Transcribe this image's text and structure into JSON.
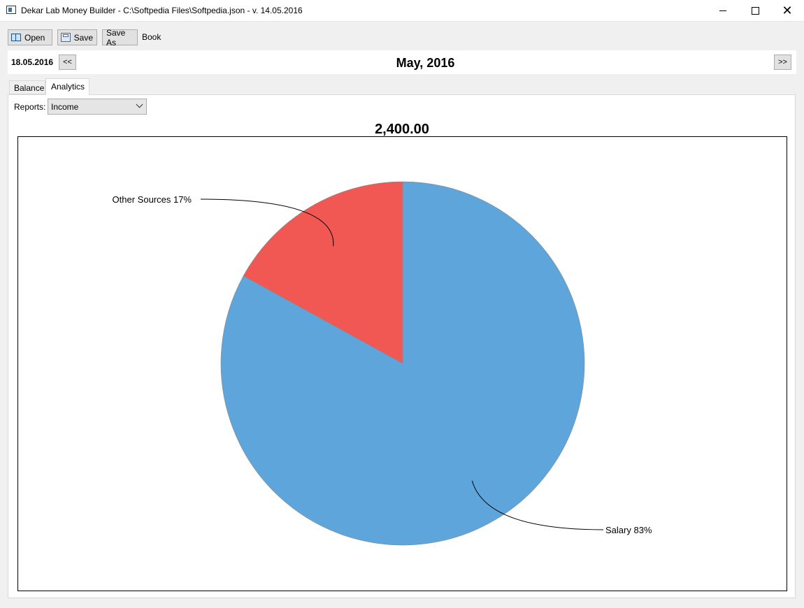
{
  "window": {
    "title": "Dekar Lab Money Builder - C:\\Softpedia Files\\Softpedia.json - v. 14.05.2016",
    "close_glyph": "✕"
  },
  "toolbar": {
    "open_label": "Open",
    "save_label": "Save",
    "save_as_label": "Save As",
    "book_label": "Book"
  },
  "nav": {
    "date": "18.05.2016",
    "prev_label": "<<",
    "next_label": ">>",
    "month": "May, 2016"
  },
  "tabs": [
    {
      "label": "Balance",
      "active": false
    },
    {
      "label": "Analytics",
      "active": true
    }
  ],
  "reports": {
    "label": "Reports:",
    "selected": "Income"
  },
  "chart_data": {
    "type": "pie",
    "title": "2,400.00",
    "slices": [
      {
        "label": "Salary",
        "percent": 83,
        "value": 2000,
        "color": "#5da5da",
        "display": "Salary 83%"
      },
      {
        "label": "Other Sources",
        "percent": 17,
        "value": 400,
        "color": "#f15854",
        "display": "Other Sources 17%"
      }
    ]
  }
}
